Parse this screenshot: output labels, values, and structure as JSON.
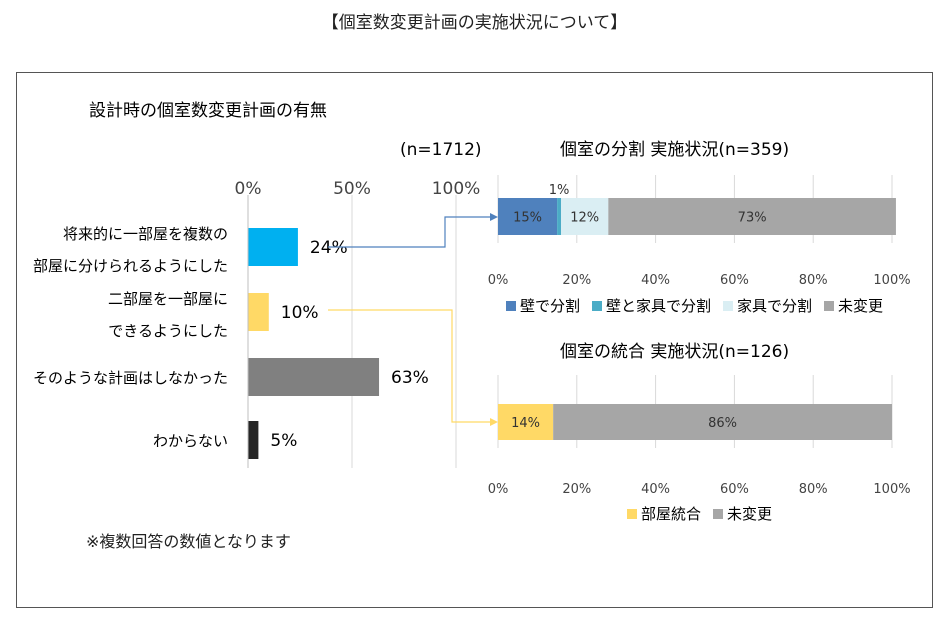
{
  "page_title": "【個室数変更計画の実施状況について】",
  "note": "※複数回答の数値となります",
  "chart_data": [
    {
      "type": "bar",
      "orientation": "horizontal",
      "title": "設計時の個室数変更計画の有無",
      "sample": "(n=1712)",
      "categories": [
        [
          "将来的に一部屋を複数の",
          "部屋に分けられるようにした"
        ],
        [
          "二部屋を一部屋に",
          "できるようにした"
        ],
        [
          "そのような計画はしなかった"
        ],
        [
          "わからない"
        ]
      ],
      "values": [
        24,
        10,
        63,
        5
      ],
      "value_labels": [
        "24%",
        "10%",
        "63%",
        "5%"
      ],
      "colors": [
        "#00b0f0",
        "#ffd966",
        "#808080",
        "#262626"
      ],
      "xlim": [
        0,
        100
      ],
      "ticks": [
        "0%",
        "50%",
        "100%"
      ],
      "grid": true
    },
    {
      "type": "bar",
      "stacked": true,
      "title": "個室の分割  実施状況(n=359)",
      "series": [
        {
          "name": "壁で分割",
          "value": 15,
          "label": "15%",
          "color": "#4f81bd"
        },
        {
          "name": "壁と家具で分割",
          "value": 1,
          "label": "1%",
          "color": "#4bacc6"
        },
        {
          "name": "家具で分割",
          "value": 12,
          "label": "12%",
          "color": "#daeef3"
        },
        {
          "name": "未変更",
          "value": 73,
          "label": "73%",
          "color": "#a6a6a6"
        }
      ],
      "xlim": [
        0,
        100
      ],
      "ticks": [
        "0%",
        "20%",
        "40%",
        "60%",
        "80%",
        "100%"
      ],
      "legend": "bottom",
      "grid": true
    },
    {
      "type": "bar",
      "stacked": true,
      "title": "個室の統合  実施状況(n=126)",
      "series": [
        {
          "name": "部屋統合",
          "value": 14,
          "label": "14%",
          "color": "#ffd966"
        },
        {
          "name": "未変更",
          "value": 86,
          "label": "86%",
          "color": "#a6a6a6"
        }
      ],
      "xlim": [
        0,
        100
      ],
      "ticks": [
        "0%",
        "20%",
        "40%",
        "60%",
        "80%",
        "100%"
      ],
      "legend": "bottom",
      "grid": true
    }
  ]
}
